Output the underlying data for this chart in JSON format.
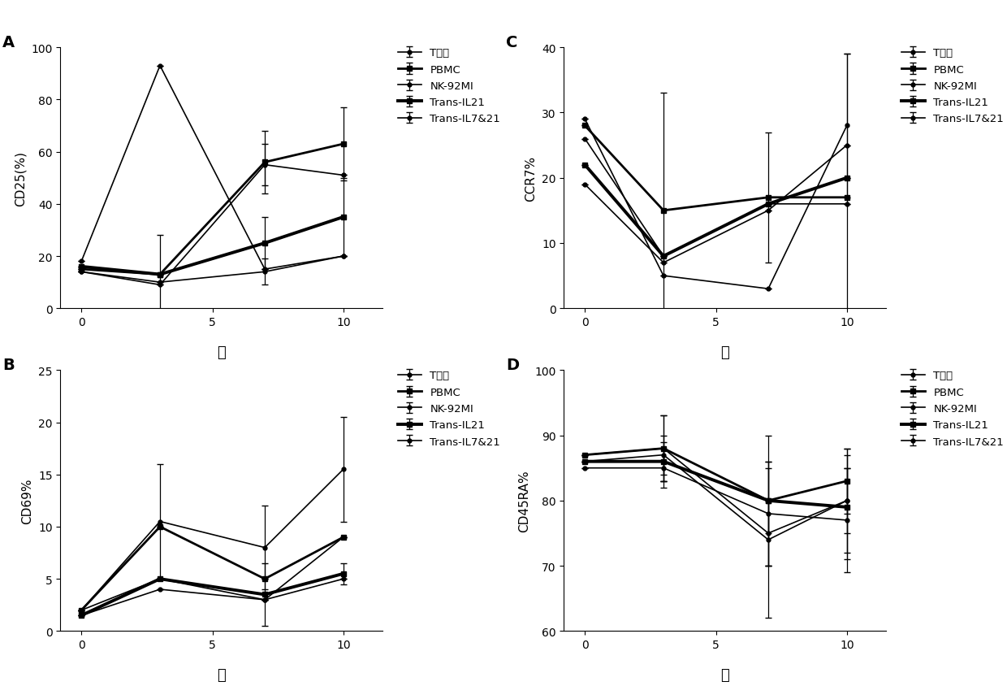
{
  "panels": {
    "A": {
      "title": "A",
      "ylabel": "CD25(%)",
      "xlabel": "天",
      "ylim": [
        0,
        100
      ],
      "yticks": [
        0,
        20,
        40,
        60,
        80,
        100
      ],
      "xticks": [
        0,
        5,
        10
      ],
      "xticklabels": [
        "0",
        "5",
        "10"
      ],
      "xdata": [
        0,
        3,
        7,
        10
      ],
      "series": [
        {
          "label": "T细胞",
          "y": [
            18,
            93,
            15,
            20
          ],
          "yerr": [
            0,
            0,
            0,
            0
          ],
          "lw": 1.2
        },
        {
          "label": "PBMC",
          "y": [
            15,
            13,
            56,
            63
          ],
          "yerr": [
            0,
            15,
            12,
            14
          ],
          "lw": 2.0
        },
        {
          "label": "NK-92MI",
          "y": [
            14,
            9,
            55,
            51
          ],
          "yerr": [
            0,
            0,
            8,
            0
          ],
          "lw": 1.2
        },
        {
          "label": "Trans-IL21",
          "y": [
            16,
            13,
            25,
            35
          ],
          "yerr": [
            0,
            0,
            10,
            15
          ],
          "lw": 2.8
        },
        {
          "label": "Trans-IL7&21",
          "y": [
            14,
            10,
            14,
            20
          ],
          "yerr": [
            0,
            0,
            5,
            0
          ],
          "lw": 1.2
        }
      ]
    },
    "B": {
      "title": "B",
      "ylabel": "CD69%",
      "xlabel": "天",
      "ylim": [
        0,
        25
      ],
      "yticks": [
        0,
        5,
        10,
        15,
        20,
        25
      ],
      "xticks": [
        0,
        5,
        10
      ],
      "xticklabels": [
        "0",
        "5",
        "10"
      ],
      "xdata": [
        0,
        3,
        7,
        10
      ],
      "series": [
        {
          "label": "T细胞",
          "y": [
            2.0,
            10.5,
            8.0,
            15.5
          ],
          "yerr": [
            0,
            5.5,
            4.0,
            5.0
          ],
          "lw": 1.2
        },
        {
          "label": "PBMC",
          "y": [
            2.0,
            10.0,
            5.0,
            9.0
          ],
          "yerr": [
            0,
            0,
            0,
            0
          ],
          "lw": 2.0
        },
        {
          "label": "NK-92MI",
          "y": [
            2.0,
            5.0,
            3.0,
            9.0
          ],
          "yerr": [
            0,
            0,
            0,
            0
          ],
          "lw": 1.2
        },
        {
          "label": "Trans-IL21",
          "y": [
            1.5,
            5.0,
            3.5,
            5.5
          ],
          "yerr": [
            0,
            0,
            3.0,
            1.0
          ],
          "lw": 2.8
        },
        {
          "label": "Trans-IL7&21",
          "y": [
            1.5,
            4.0,
            3.0,
            5.0
          ],
          "yerr": [
            0,
            0,
            0,
            0
          ],
          "lw": 1.2
        }
      ]
    },
    "C": {
      "title": "C",
      "ylabel": "CCR7%",
      "xlabel": "天",
      "ylim": [
        0,
        40
      ],
      "yticks": [
        0,
        10,
        20,
        30,
        40
      ],
      "xticks": [
        0,
        5,
        10
      ],
      "xticklabels": [
        "0",
        "5",
        "10"
      ],
      "xdata": [
        0,
        3,
        7,
        10
      ],
      "series": [
        {
          "label": "T细胞",
          "y": [
            29,
            5,
            3,
            28
          ],
          "yerr": [
            0,
            0,
            0,
            11
          ],
          "lw": 1.2
        },
        {
          "label": "PBMC",
          "y": [
            28,
            15,
            17,
            17
          ],
          "yerr": [
            0,
            18,
            10,
            22
          ],
          "lw": 2.0
        },
        {
          "label": "NK-92MI",
          "y": [
            26,
            8,
            16,
            16
          ],
          "yerr": [
            0,
            0,
            0,
            0
          ],
          "lw": 1.2
        },
        {
          "label": "Trans-IL21",
          "y": [
            22,
            8,
            16,
            20
          ],
          "yerr": [
            0,
            0,
            0,
            0
          ],
          "lw": 2.8
        },
        {
          "label": "Trans-IL7&21",
          "y": [
            19,
            7,
            15,
            25
          ],
          "yerr": [
            0,
            0,
            0,
            0
          ],
          "lw": 1.2
        }
      ]
    },
    "D": {
      "title": "D",
      "ylabel": "CD45RA%",
      "xlabel": "天",
      "ylim": [
        60,
        100
      ],
      "yticks": [
        60,
        70,
        80,
        90,
        100
      ],
      "xticks": [
        0,
        5,
        10
      ],
      "xticklabels": [
        "0",
        "5",
        "10"
      ],
      "xdata": [
        0,
        3,
        7,
        10
      ],
      "series": [
        {
          "label": "T细胞",
          "y": [
            87,
            88,
            75,
            80
          ],
          "yerr": [
            0,
            5,
            5,
            5
          ],
          "lw": 1.2
        },
        {
          "label": "PBMC",
          "y": [
            87,
            88,
            80,
            83
          ],
          "yerr": [
            0,
            5,
            5,
            5
          ],
          "lw": 2.0
        },
        {
          "label": "NK-92MI",
          "y": [
            86,
            87,
            74,
            80
          ],
          "yerr": [
            0,
            3,
            12,
            8
          ],
          "lw": 1.2
        },
        {
          "label": "Trans-IL21",
          "y": [
            86,
            86,
            80,
            79
          ],
          "yerr": [
            0,
            3,
            10,
            8
          ],
          "lw": 2.8
        },
        {
          "label": "Trans-IL7&21",
          "y": [
            85,
            85,
            78,
            77
          ],
          "yerr": [
            0,
            3,
            8,
            8
          ],
          "lw": 1.2
        }
      ]
    }
  },
  "line_configs": [
    {
      "lw": 1.2,
      "color": "#000000",
      "marker": "o",
      "markersize": 3.5,
      "linestyle": "-"
    },
    {
      "lw": 2.0,
      "color": "#000000",
      "marker": "s",
      "markersize": 4.5,
      "linestyle": "-"
    },
    {
      "lw": 1.2,
      "color": "#000000",
      "marker": "o",
      "markersize": 3.5,
      "linestyle": "-"
    },
    {
      "lw": 2.8,
      "color": "#000000",
      "marker": "s",
      "markersize": 4.5,
      "linestyle": "-"
    },
    {
      "lw": 1.2,
      "color": "#000000",
      "marker": "o",
      "markersize": 3.5,
      "linestyle": "-"
    }
  ],
  "background_color": "#ffffff",
  "panel_label_fontsize": 14,
  "axis_label_fontsize": 11,
  "tick_fontsize": 10,
  "legend_fontsize": 9.5
}
